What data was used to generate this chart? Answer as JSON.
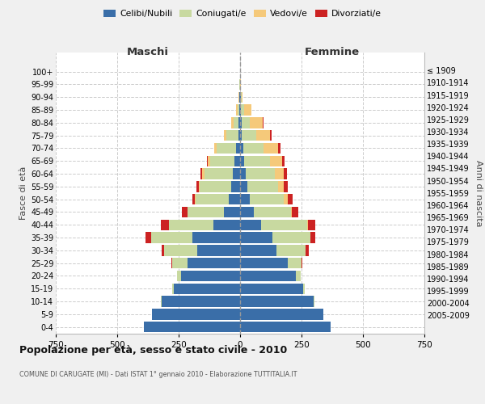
{
  "age_groups": [
    "0-4",
    "5-9",
    "10-14",
    "15-19",
    "20-24",
    "25-29",
    "30-34",
    "35-39",
    "40-44",
    "45-49",
    "50-54",
    "55-59",
    "60-64",
    "65-69",
    "70-74",
    "75-79",
    "80-84",
    "85-89",
    "90-94",
    "95-99",
    "100+"
  ],
  "birth_years": [
    "2005-2009",
    "2000-2004",
    "1995-1999",
    "1990-1994",
    "1985-1989",
    "1980-1984",
    "1975-1979",
    "1970-1974",
    "1965-1969",
    "1960-1964",
    "1955-1959",
    "1950-1954",
    "1945-1949",
    "1940-1944",
    "1935-1939",
    "1930-1934",
    "1925-1929",
    "1920-1924",
    "1915-1919",
    "1910-1914",
    "≤ 1909"
  ],
  "maschi": {
    "celibi": [
      390,
      360,
      320,
      270,
      240,
      215,
      175,
      195,
      110,
      65,
      45,
      35,
      28,
      22,
      15,
      8,
      5,
      3,
      2,
      1,
      0
    ],
    "coniugati": [
      0,
      0,
      2,
      5,
      18,
      60,
      135,
      168,
      180,
      148,
      135,
      128,
      118,
      100,
      80,
      48,
      22,
      8,
      2,
      1,
      0
    ],
    "vedovi": [
      0,
      0,
      0,
      0,
      0,
      0,
      0,
      0,
      1,
      2,
      3,
      5,
      8,
      10,
      10,
      10,
      10,
      5,
      1,
      0,
      0
    ],
    "divorziati": [
      0,
      0,
      0,
      0,
      0,
      5,
      10,
      22,
      32,
      22,
      12,
      10,
      6,
      3,
      0,
      0,
      0,
      0,
      0,
      0,
      0
    ]
  },
  "femmine": {
    "nubili": [
      370,
      340,
      300,
      258,
      228,
      195,
      148,
      130,
      85,
      55,
      40,
      28,
      22,
      18,
      12,
      7,
      5,
      3,
      2,
      1,
      0
    ],
    "coniugate": [
      0,
      0,
      2,
      4,
      18,
      55,
      120,
      155,
      188,
      152,
      138,
      128,
      118,
      105,
      85,
      58,
      35,
      12,
      3,
      0,
      0
    ],
    "vedove": [
      0,
      0,
      0,
      0,
      0,
      0,
      0,
      0,
      2,
      5,
      15,
      22,
      38,
      48,
      58,
      58,
      52,
      32,
      5,
      1,
      0
    ],
    "divorziate": [
      0,
      0,
      0,
      0,
      0,
      2,
      10,
      20,
      30,
      25,
      20,
      15,
      12,
      10,
      8,
      5,
      2,
      0,
      0,
      0,
      0
    ]
  },
  "colors": {
    "celibi": "#3a6ea8",
    "coniugati": "#c8d9a0",
    "vedovi": "#f5c97a",
    "divorziati": "#cc2222"
  },
  "xlim": 750,
  "title": "Popolazione per età, sesso e stato civile - 2010",
  "subtitle": "COMUNE DI CARUGATE (MI) - Dati ISTAT 1° gennaio 2010 - Elaborazione TUTTITALIA.IT",
  "ylabel_left": "Fasce di età",
  "ylabel_right": "Anni di nascita",
  "xlabel_left": "Maschi",
  "xlabel_right": "Femmine",
  "bg_color": "#f0f0f0",
  "plot_bg": "#ffffff",
  "legend": [
    "Celibi/Nubili",
    "Coniugati/e",
    "Vedovi/e",
    "Divorziati/e"
  ]
}
